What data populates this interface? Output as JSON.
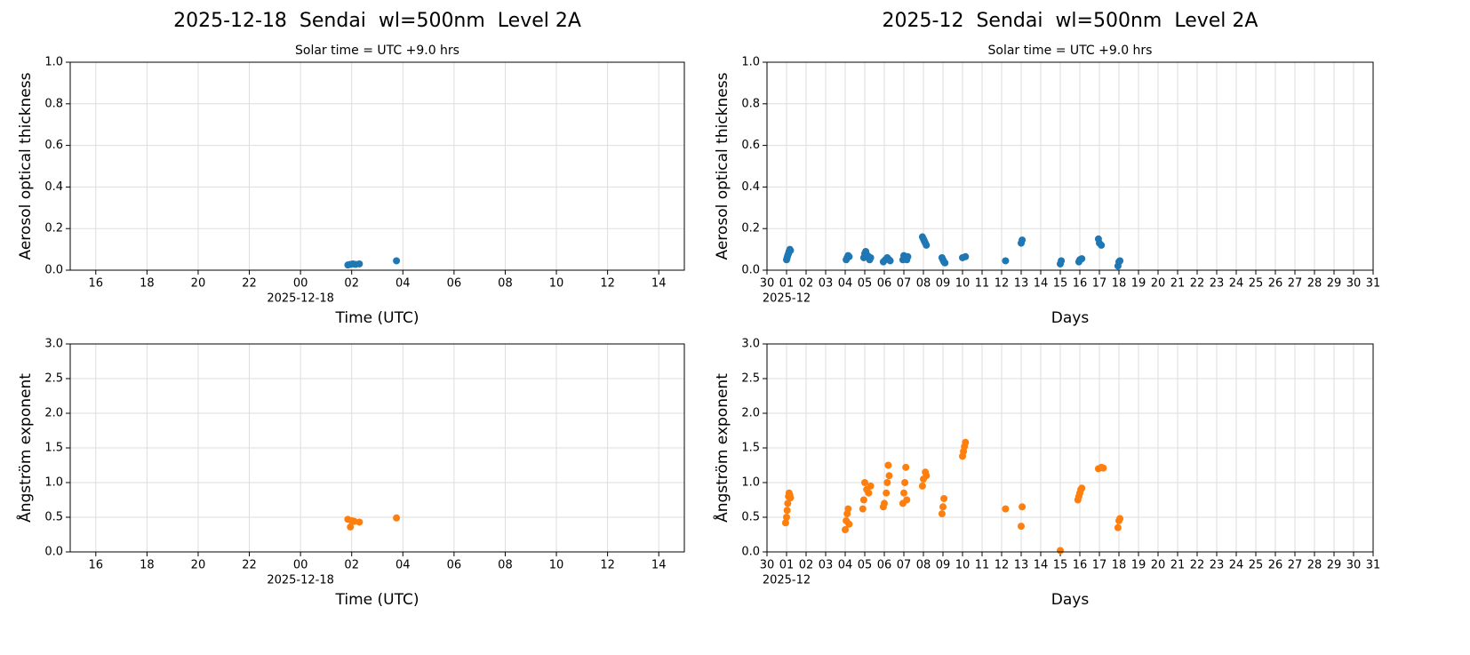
{
  "chart_data": [
    {
      "type": "scatter",
      "title": "2025-12-18  Sendai  wl=500nm  Level 2A",
      "subtitle": "Solar time = UTC +9.0 hrs",
      "x_label": "Time (UTC)",
      "y_label": "Aerosol optical thickness",
      "x_date_label": {
        "value": 0,
        "label": "2025-12-18"
      },
      "xlim": [
        -9,
        15
      ],
      "ylim": [
        0,
        1
      ],
      "grid": true,
      "color": "#1f77b4",
      "xticks": [
        {
          "value": -8,
          "label": "16"
        },
        {
          "value": -6,
          "label": "18"
        },
        {
          "value": -4,
          "label": "20"
        },
        {
          "value": -2,
          "label": "22"
        },
        {
          "value": 0,
          "label": "00"
        },
        {
          "value": 2,
          "label": "02"
        },
        {
          "value": 4,
          "label": "04"
        },
        {
          "value": 6,
          "label": "06"
        },
        {
          "value": 8,
          "label": "08"
        },
        10,
        12,
        14
      ],
      "yticks": [
        {
          "value": 0,
          "label": "0.0"
        },
        0.2,
        0.4,
        0.6,
        0.8,
        {
          "value": 1,
          "label": "1.0"
        }
      ],
      "x": [
        1.85,
        1.95,
        2.05,
        2.15,
        2.3,
        3.75
      ],
      "values": [
        0.025,
        0.028,
        0.03,
        0.028,
        0.03,
        0.045
      ]
    },
    {
      "type": "scatter",
      "title": "2025-12  Sendai  wl=500nm  Level 2A",
      "subtitle": "Solar time = UTC +9.0 hrs",
      "x_label": "Days",
      "y_label": "Aerosol optical thickness",
      "x_date_label": {
        "value": 1,
        "label": "2025-12"
      },
      "xlim": [
        0,
        31
      ],
      "ylim": [
        0,
        1
      ],
      "grid": true,
      "color": "#1f77b4",
      "xticks": [
        {
          "value": 0,
          "label": "30"
        },
        {
          "value": 1,
          "label": "01"
        },
        {
          "value": 2,
          "label": "02"
        },
        {
          "value": 3,
          "label": "03"
        },
        {
          "value": 4,
          "label": "04"
        },
        {
          "value": 5,
          "label": "05"
        },
        {
          "value": 6,
          "label": "06"
        },
        {
          "value": 7,
          "label": "07"
        },
        {
          "value": 8,
          "label": "08"
        },
        {
          "value": 9,
          "label": "09"
        },
        10,
        11,
        12,
        13,
        14,
        15,
        16,
        17,
        18,
        19,
        20,
        21,
        22,
        23,
        24,
        25,
        26,
        27,
        28,
        29,
        30,
        31
      ],
      "yticks": [
        {
          "value": 0,
          "label": "0.0"
        },
        0.2,
        0.4,
        0.6,
        0.8,
        {
          "value": 1,
          "label": "1.0"
        }
      ],
      "x": [
        1.0,
        1.03,
        1.06,
        1.1,
        1.13,
        1.17,
        1.2,
        4.05,
        4.1,
        4.15,
        4.2,
        4.95,
        5.0,
        5.05,
        5.15,
        5.25,
        5.3,
        5.95,
        6.05,
        6.15,
        6.25,
        6.3,
        6.95,
        7.0,
        7.1,
        7.15,
        7.2,
        7.95,
        8.0,
        8.05,
        8.1,
        8.15,
        8.95,
        9.0,
        9.05,
        9.1,
        10.0,
        10.15,
        12.2,
        13.0,
        13.05,
        15.0,
        15.05,
        15.95,
        16.0,
        16.1,
        16.95,
        17.0,
        17.1,
        17.95,
        18.0,
        18.05
      ],
      "values": [
        0.05,
        0.06,
        0.07,
        0.08,
        0.09,
        0.1,
        0.095,
        0.05,
        0.06,
        0.07,
        0.065,
        0.06,
        0.08,
        0.09,
        0.07,
        0.05,
        0.06,
        0.04,
        0.05,
        0.06,
        0.05,
        0.045,
        0.05,
        0.07,
        0.06,
        0.05,
        0.065,
        0.16,
        0.15,
        0.14,
        0.13,
        0.12,
        0.06,
        0.05,
        0.04,
        0.035,
        0.06,
        0.065,
        0.045,
        0.13,
        0.145,
        0.03,
        0.045,
        0.04,
        0.05,
        0.055,
        0.15,
        0.13,
        0.12,
        0.02,
        0.04,
        0.045
      ]
    },
    {
      "type": "scatter",
      "x_label": "Time (UTC)",
      "y_label": "Ångström exponent",
      "x_date_label": {
        "value": 0,
        "label": "2025-12-18"
      },
      "xlim": [
        -9,
        15
      ],
      "ylim": [
        0,
        3
      ],
      "grid": true,
      "color": "#ff7f0e",
      "xticks": [
        {
          "value": -8,
          "label": "16"
        },
        {
          "value": -6,
          "label": "18"
        },
        {
          "value": -4,
          "label": "20"
        },
        {
          "value": -2,
          "label": "22"
        },
        {
          "value": 0,
          "label": "00"
        },
        {
          "value": 2,
          "label": "02"
        },
        {
          "value": 4,
          "label": "04"
        },
        {
          "value": 6,
          "label": "06"
        },
        {
          "value": 8,
          "label": "08"
        },
        10,
        12,
        14
      ],
      "yticks": [
        {
          "value": 0,
          "label": "0.0"
        },
        0.5,
        {
          "value": 1,
          "label": "1.0"
        },
        1.5,
        {
          "value": 2,
          "label": "2.0"
        },
        2.5,
        {
          "value": 3,
          "label": "3.0"
        }
      ],
      "x": [
        1.85,
        1.95,
        2.0,
        2.1,
        2.3,
        3.75
      ],
      "values": [
        0.47,
        0.36,
        0.45,
        0.44,
        0.43,
        0.49
      ]
    },
    {
      "type": "scatter",
      "x_label": "Days",
      "y_label": "Ångström exponent",
      "x_date_label": {
        "value": 1,
        "label": "2025-12"
      },
      "xlim": [
        0,
        31
      ],
      "ylim": [
        0,
        3
      ],
      "grid": true,
      "color": "#ff7f0e",
      "xticks": [
        {
          "value": 0,
          "label": "30"
        },
        {
          "value": 1,
          "label": "01"
        },
        {
          "value": 2,
          "label": "02"
        },
        {
          "value": 3,
          "label": "03"
        },
        {
          "value": 4,
          "label": "04"
        },
        {
          "value": 5,
          "label": "05"
        },
        {
          "value": 6,
          "label": "06"
        },
        {
          "value": 7,
          "label": "07"
        },
        {
          "value": 8,
          "label": "08"
        },
        {
          "value": 9,
          "label": "09"
        },
        10,
        11,
        12,
        13,
        14,
        15,
        16,
        17,
        18,
        19,
        20,
        21,
        22,
        23,
        24,
        25,
        26,
        27,
        28,
        29,
        30,
        31
      ],
      "yticks": [
        {
          "value": 0,
          "label": "0.0"
        },
        0.5,
        {
          "value": 1,
          "label": "1.0"
        },
        1.5,
        {
          "value": 2,
          "label": "2.0"
        },
        2.5,
        {
          "value": 3,
          "label": "3.0"
        }
      ],
      "x": [
        0.95,
        1.0,
        1.03,
        1.06,
        1.1,
        1.13,
        1.17,
        1.2,
        4.0,
        4.05,
        4.1,
        4.15,
        4.2,
        4.9,
        4.95,
        5.0,
        5.1,
        5.2,
        5.3,
        5.95,
        6.0,
        6.1,
        6.15,
        6.2,
        6.25,
        6.95,
        7.0,
        7.05,
        7.1,
        7.15,
        7.95,
        8.0,
        8.1,
        8.15,
        8.95,
        9.0,
        9.05,
        10.0,
        10.05,
        10.1,
        10.15,
        12.2,
        13.0,
        13.05,
        15.0,
        15.9,
        15.95,
        16.0,
        16.05,
        16.1,
        16.95,
        17.1,
        17.2,
        17.95,
        18.0,
        18.05
      ],
      "values": [
        0.42,
        0.5,
        0.6,
        0.7,
        0.8,
        0.85,
        0.82,
        0.78,
        0.32,
        0.45,
        0.55,
        0.62,
        0.4,
        0.62,
        0.75,
        1.0,
        0.9,
        0.85,
        0.95,
        0.65,
        0.7,
        0.85,
        1.0,
        1.25,
        1.1,
        0.7,
        0.85,
        1.0,
        1.22,
        0.75,
        0.95,
        1.05,
        1.15,
        1.1,
        0.55,
        0.65,
        0.77,
        1.38,
        1.45,
        1.52,
        1.58,
        0.62,
        0.37,
        0.65,
        0.02,
        0.75,
        0.8,
        0.85,
        0.9,
        0.92,
        1.2,
        1.22,
        1.21,
        0.35,
        0.45,
        0.48
      ]
    }
  ]
}
